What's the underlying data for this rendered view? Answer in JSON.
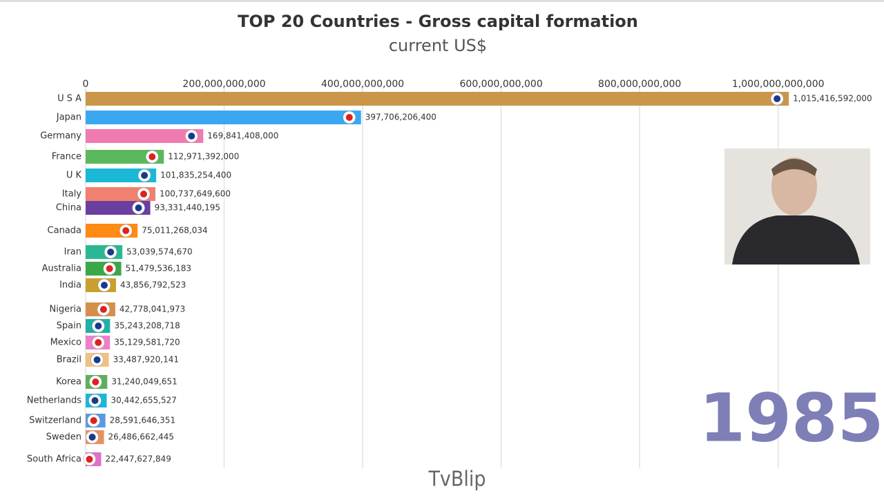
{
  "chart_data": {
    "type": "bar",
    "orientation": "horizontal",
    "title": "TOP 20 Countries - Gross capital formation",
    "subtitle": "current US$",
    "year": "1985",
    "watermark": "TvBlip",
    "categories": [
      "U S A",
      "Japan",
      "Germany",
      "France",
      "U K",
      "Italy",
      "China",
      "Canada",
      "Iran",
      "Australia",
      "India",
      "Nigeria",
      "Spain",
      "Mexico",
      "Brazil",
      "Korea",
      "Netherlands",
      "Switzerland",
      "Sweden",
      "South Africa"
    ],
    "values": [
      1015416592000,
      397706206400,
      169841408000,
      112971392000,
      101835254400,
      100737649600,
      93331440195,
      75011268034,
      53039574670,
      51479536183,
      43856792523,
      42778041973,
      35243208718,
      35129581720,
      33487920141,
      31240049651,
      30442655527,
      28591646351,
      26486662445,
      22447627849
    ],
    "value_labels": [
      "1,015,416,592,000",
      "397,706,206,400",
      "169,841,408,000",
      "112,971,392,000",
      "101,835,254,400",
      "100,737,649,600",
      "93,331,440,195",
      "75,011,268,034",
      "53,039,574,670",
      "51,479,536,183",
      "43,856,792,523",
      "42,778,041,973",
      "35,243,208,718",
      "35,129,581,720",
      "33,487,920,141",
      "31,240,049,651",
      "30,442,655,527",
      "28,591,646,351",
      "26,486,662,445",
      "22,447,627,849"
    ],
    "colors": [
      "#c9964a",
      "#3aa8f0",
      "#f07bb0",
      "#5cb85c",
      "#1ab8d6",
      "#f08070",
      "#6a3fa0",
      "#ff8a14",
      "#2ab894",
      "#3aa848",
      "#c9a030",
      "#d4904a",
      "#20b0a8",
      "#ee80c8",
      "#f0c080",
      "#5cb058",
      "#1ab8d6",
      "#5a9ae0",
      "#e89060",
      "#e070c8"
    ],
    "xlim": [
      0,
      1100000000000
    ],
    "xticks": [
      0,
      {
        "value": 200000000000,
        "label": "200,000,000,000"
      },
      {
        "value": 400000000000,
        "label": "400,000,000,000"
      },
      {
        "value": 600000000000,
        "label": "600,000,000,000"
      },
      {
        "value": 800000000000,
        "label": "800,000,000,000"
      },
      {
        "value": 1000000000000,
        "label": "1,000,000,000,000"
      }
    ],
    "grid": true
  }
}
